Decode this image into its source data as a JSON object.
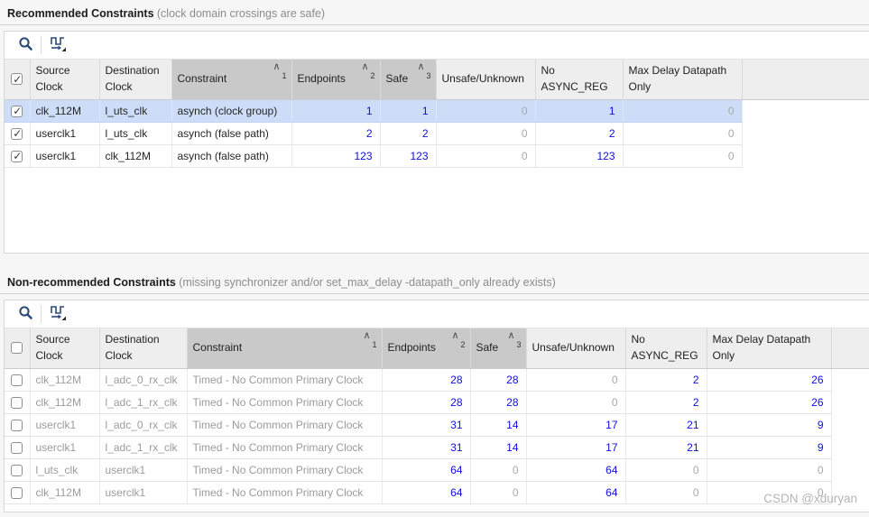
{
  "watermark": "CSDN @xduryan",
  "toolbar": {
    "search_icon": "search",
    "clock_domains_icon": "waveform-dropdown"
  },
  "colors": {
    "count_blue": "#0d0de0",
    "zero_gray": "#a8a8a8",
    "selected_row": "#cddcf7",
    "sorted_header": "#c9c9c9",
    "icon_navy": "#2c4a78"
  },
  "sections": [
    {
      "title": "Recommended Constraints",
      "subtitle": "(clock domain crossings are safe)",
      "select_all_checked": true,
      "columns": [
        {
          "label": "Source Clock"
        },
        {
          "label": "Destination Clock"
        },
        {
          "label": "Constraint",
          "sorted": true,
          "sort_order": "1"
        },
        {
          "label": "Endpoints",
          "sorted": true,
          "sort_order": "2"
        },
        {
          "label": "Safe",
          "sorted": true,
          "sort_order": "3"
        },
        {
          "label": "Unsafe/Unknown"
        },
        {
          "label": "No ASYNC_REG"
        },
        {
          "label": "Max Delay Datapath Only"
        }
      ],
      "rows": [
        {
          "checked": true,
          "selected": true,
          "cells": [
            "clk_112M",
            "l_uts_clk",
            "asynch (clock group)",
            "1",
            "1",
            "0",
            "1",
            "0"
          ]
        },
        {
          "checked": true,
          "selected": false,
          "cells": [
            "userclk1",
            "l_uts_clk",
            "asynch (false path)",
            "2",
            "2",
            "0",
            "2",
            "0"
          ]
        },
        {
          "checked": true,
          "selected": false,
          "cells": [
            "userclk1",
            "clk_112M",
            "asynch (false path)",
            "123",
            "123",
            "0",
            "123",
            "0"
          ]
        }
      ]
    },
    {
      "title": "Non-recommended Constraints",
      "subtitle": "(missing synchronizer and/or set_max_delay -datapath_only already exists)",
      "select_all_checked": false,
      "columns": [
        {
          "label": "Source Clock"
        },
        {
          "label": "Destination Clock"
        },
        {
          "label": "Constraint",
          "sorted": true,
          "sort_order": "1"
        },
        {
          "label": "Endpoints",
          "sorted": true,
          "sort_order": "2"
        },
        {
          "label": "Safe",
          "sorted": true,
          "sort_order": "3"
        },
        {
          "label": "Unsafe/Unknown"
        },
        {
          "label": "No ASYNC_REG"
        },
        {
          "label": "Max Delay Datapath Only"
        }
      ],
      "rows": [
        {
          "checked": false,
          "selected": false,
          "cells": [
            "clk_112M",
            "l_adc_0_rx_clk",
            "Timed - No Common Primary Clock",
            "28",
            "28",
            "0",
            "2",
            "26"
          ]
        },
        {
          "checked": false,
          "selected": false,
          "cells": [
            "clk_112M",
            "l_adc_1_rx_clk",
            "Timed - No Common Primary Clock",
            "28",
            "28",
            "0",
            "2",
            "26"
          ]
        },
        {
          "checked": false,
          "selected": false,
          "cells": [
            "userclk1",
            "l_adc_0_rx_clk",
            "Timed - No Common Primary Clock",
            "31",
            "14",
            "17",
            "21",
            "9"
          ]
        },
        {
          "checked": false,
          "selected": false,
          "cells": [
            "userclk1",
            "l_adc_1_rx_clk",
            "Timed - No Common Primary Clock",
            "31",
            "14",
            "17",
            "21",
            "9"
          ]
        },
        {
          "checked": false,
          "selected": false,
          "cells": [
            "l_uts_clk",
            "userclk1",
            "Timed - No Common Primary Clock",
            "64",
            "0",
            "64",
            "0",
            "0"
          ]
        },
        {
          "checked": false,
          "selected": false,
          "cells": [
            "clk_112M",
            "userclk1",
            "Timed - No Common Primary Clock",
            "64",
            "0",
            "64",
            "0",
            "0"
          ]
        }
      ]
    }
  ]
}
